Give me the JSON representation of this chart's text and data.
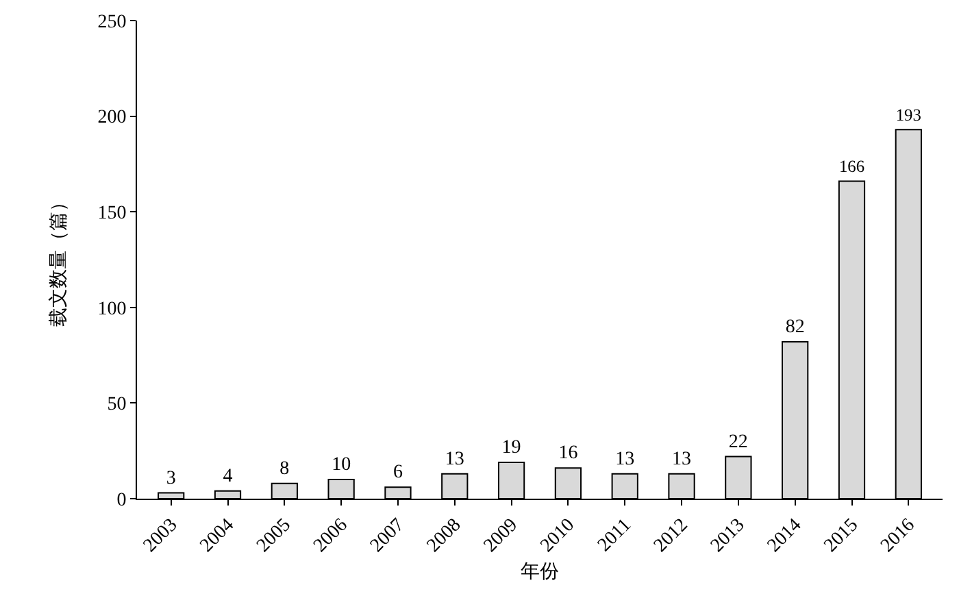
{
  "chart_data": {
    "type": "bar",
    "xlabel": "年份",
    "ylabel": "载文数量（篇）",
    "categories": [
      "2003",
      "2004",
      "2005",
      "2006",
      "2007",
      "2008",
      "2009",
      "2010",
      "2011",
      "2012",
      "2013",
      "2014",
      "2015",
      "2016"
    ],
    "values": [
      3,
      4,
      8,
      10,
      6,
      13,
      19,
      16,
      13,
      13,
      22,
      82,
      166,
      193
    ],
    "color": "#d9d9d9",
    "ylim": [
      0,
      250
    ],
    "yticks": [
      0,
      50,
      100,
      150,
      200,
      250
    ],
    "grid": false,
    "data_labels": true
  }
}
